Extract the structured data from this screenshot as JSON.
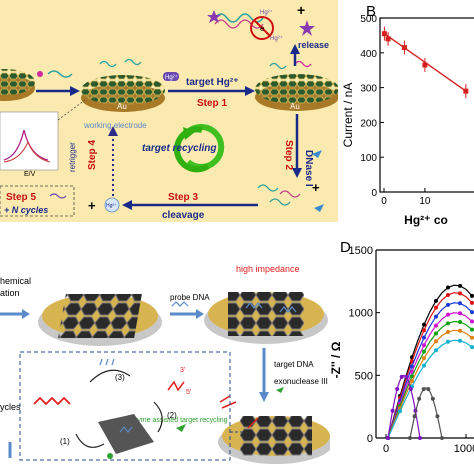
{
  "panelA": {
    "step1": "Step 1",
    "step2": "Step 2",
    "step3": "Step 3",
    "step4": "Step 4",
    "step5": "Step 5",
    "target_hg": "target Hg²⁺",
    "hg_label": "Hg²⁺",
    "release": "release",
    "working_electrode": "working electrode",
    "target_recycling": "target recycling",
    "dnase": "DNase I",
    "cleavage": "cleavage",
    "retrigger": "retrigger",
    "n_cycles": "+ N cycles",
    "au_label": "Au",
    "ev_label": "E/V",
    "e_label": "e"
  },
  "panelB": {
    "letter": "B",
    "ylabel": "Current / nA",
    "xlabel": "Hg²⁺ co",
    "yticks": [
      "0",
      "100",
      "200",
      "300",
      "400",
      "500"
    ],
    "xticks": [
      "0",
      "10"
    ]
  },
  "panelC": {
    "electrochemical": "hemical",
    "ation": "ation",
    "probe_dna": "probe DNA",
    "high_impedance": "high impedance",
    "target_dna": "target DNA",
    "exonuclease": "exonuclease III",
    "enzyme_recycling": "enzyme assisted target recycling",
    "cycles": "ycles",
    "step_1": "(1)",
    "step_2": "(2)",
    "step_3": "(3)",
    "p3": "3'",
    "p5": "5'"
  },
  "panelD": {
    "letter": "D",
    "ylabel": "-Z'' / Ω",
    "yticks": [
      "0",
      "500",
      "1000",
      "1500"
    ],
    "xticks": [
      "0",
      "1000"
    ]
  },
  "colors": {
    "panelA_bg": "#fbeab0",
    "accent_blue": "#1a2a8a",
    "step_red": "#c81010",
    "gold": "#c8a23a",
    "line_red": "#d62020"
  },
  "chart_data": [
    {
      "type": "line",
      "title": "",
      "xlabel": "Hg²⁺ co",
      "ylabel": "Current / nA",
      "ylim": [
        0,
        500
      ],
      "x": [
        0.1,
        1,
        5,
        10,
        20
      ],
      "series": [
        {
          "values": [
            455,
            440,
            415,
            365,
            290
          ]
        }
      ],
      "grid": false
    },
    {
      "type": "scatter",
      "title": "",
      "xlabel": "",
      "ylabel": "-Z'' / Ω",
      "ylim": [
        0,
        1500
      ],
      "series": [
        {
          "color": "#000000",
          "values": [
            1220
          ]
        },
        {
          "color": "#e01010",
          "values": [
            1160
          ]
        },
        {
          "color": "#1a3ad8",
          "values": [
            1080
          ]
        },
        {
          "color": "#d010d0",
          "values": [
            1000
          ]
        },
        {
          "color": "#10a010",
          "values": [
            930
          ]
        },
        {
          "color": "#e08010",
          "values": [
            860
          ]
        },
        {
          "color": "#10b0d0",
          "values": [
            780
          ]
        },
        {
          "color": "#8010c0",
          "values": [
            500
          ]
        },
        {
          "color": "#505050",
          "values": [
            400
          ]
        }
      ],
      "grid": false
    }
  ]
}
